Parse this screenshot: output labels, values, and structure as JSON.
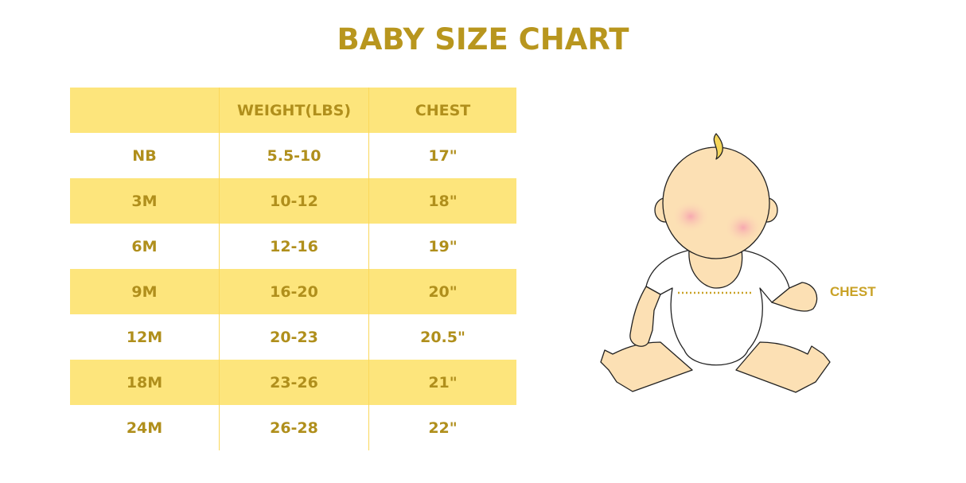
{
  "title": "BABY SIZE CHART",
  "table": {
    "headers": [
      "",
      "WEIGHT(LBS)",
      "CHEST"
    ],
    "rows": [
      [
        "NB",
        "5.5-10",
        "17\""
      ],
      [
        "3M",
        "10-12",
        "18\""
      ],
      [
        "6M",
        "12-16",
        "19\""
      ],
      [
        "9M",
        "16-20",
        "20\""
      ],
      [
        "12M",
        "20-23",
        "20.5\""
      ],
      [
        "18M",
        "23-26",
        "21\""
      ],
      [
        "24M",
        "26-28",
        "22\""
      ]
    ]
  },
  "illustration": {
    "chest_label": "CHEST"
  },
  "colors": {
    "accent_text": "#B8961E",
    "row_highlight": "#FDE57C",
    "skin": "#FCE0B4"
  }
}
